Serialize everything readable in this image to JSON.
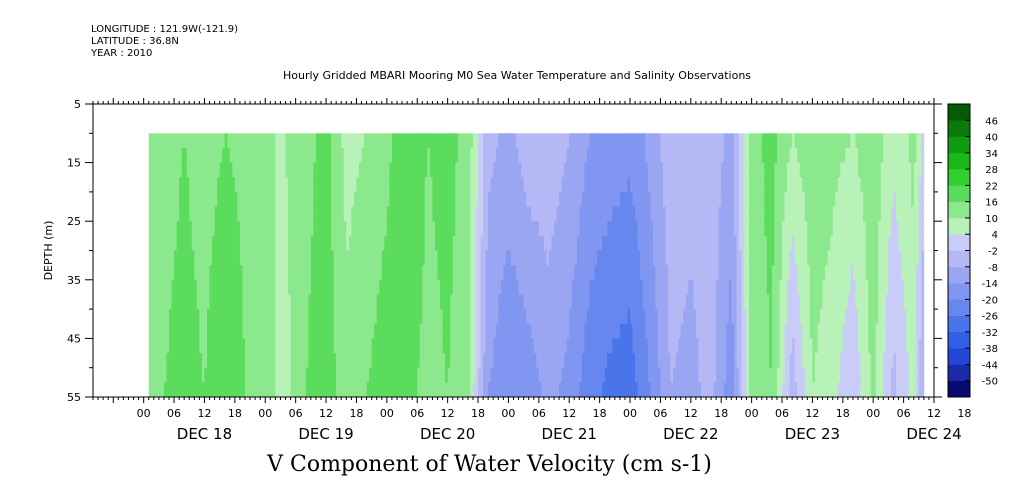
{
  "header": {
    "longitude": "LONGITUDE : 121.9W(-121.9)",
    "latitude": "LATITUDE : 36.8N",
    "year": "YEAR : 2010",
    "title": "Hourly Gridded MBARI Mooring M0 Sea Water Temperature and Salinity Observations"
  },
  "chart_data": {
    "type": "heatmap",
    "title": "Hourly Gridded MBARI Mooring M0 Sea Water Temperature and Salinity Observations",
    "variable_label": "V Component of Water Velocity (cm s-1)",
    "ylabel": "DEPTH (m)",
    "y_axis": {
      "range": [
        5,
        55
      ],
      "inverted": true,
      "ticks": [
        5,
        15,
        25,
        35,
        45,
        55
      ],
      "data_top": 10,
      "data_bottom": 55
    },
    "x_axis": {
      "hour_ticks": [
        "00",
        "06",
        "12",
        "18",
        "00",
        "06",
        "12",
        "18",
        "00",
        "06",
        "12",
        "18",
        "00",
        "06",
        "12",
        "18",
        "00",
        "06",
        "12",
        "18",
        "00",
        "06",
        "12",
        "18",
        "00",
        "06",
        "12",
        "18"
      ],
      "day_labels": [
        "DEC 18",
        "DEC 19",
        "DEC 20",
        "DEC 21",
        "DEC 22",
        "DEC 23",
        "DEC 24"
      ],
      "range_hours_from_dec18_00": [
        -10,
        156
      ],
      "data_range_hours_from_dec18_00": [
        1,
        154
      ]
    },
    "colorbar": {
      "levels": [
        -50,
        -44,
        -38,
        -32,
        -26,
        -20,
        -14,
        -8,
        -2,
        4,
        10,
        16,
        22,
        28,
        34,
        40,
        46
      ],
      "colors": [
        "#0a0a6e",
        "#1a2aa8",
        "#2346d6",
        "#3060e6",
        "#4a74ea",
        "#6688ee",
        "#8096f0",
        "#9aa6f2",
        "#b4b8f4",
        "#c8ccf6",
        "#b8f2b8",
        "#8ce88c",
        "#5cdc5c",
        "#30d030",
        "#18b818",
        "#109a10",
        "#0a7a0a",
        "#065c06"
      ]
    },
    "profile_hours": [
      1,
      4,
      8,
      12,
      16,
      20,
      24,
      28,
      32,
      36,
      40,
      44,
      48,
      52,
      56,
      60,
      64,
      68,
      72,
      76,
      80,
      84,
      88,
      92,
      96,
      100,
      104,
      108,
      112,
      116,
      120,
      124,
      128,
      132,
      136,
      140,
      144,
      148,
      152,
      154
    ],
    "v_surface": [
      12,
      14,
      16,
      14,
      16,
      15,
      10,
      10,
      14,
      18,
      8,
      10,
      14,
      22,
      16,
      18,
      14,
      -6,
      -10,
      -4,
      -4,
      -8,
      -14,
      -16,
      -18,
      -12,
      -4,
      -6,
      -4,
      -10,
      14,
      18,
      10,
      14,
      12,
      10,
      14,
      6,
      12,
      2
    ],
    "v_bottom": [
      14,
      16,
      18,
      16,
      20,
      16,
      12,
      8,
      16,
      20,
      12,
      16,
      20,
      18,
      14,
      16,
      12,
      -14,
      -20,
      -18,
      -12,
      -16,
      -24,
      -28,
      -30,
      -20,
      -8,
      -10,
      -6,
      -18,
      12,
      16,
      -6,
      10,
      6,
      -2,
      12,
      -4,
      6,
      -10
    ]
  },
  "colorbar_labels": [
    "46",
    "40",
    "34",
    "28",
    "22",
    "16",
    "10",
    "4",
    "-2",
    "-8",
    "-14",
    "-20",
    "-26",
    "-32",
    "-38",
    "-44",
    "-50"
  ]
}
